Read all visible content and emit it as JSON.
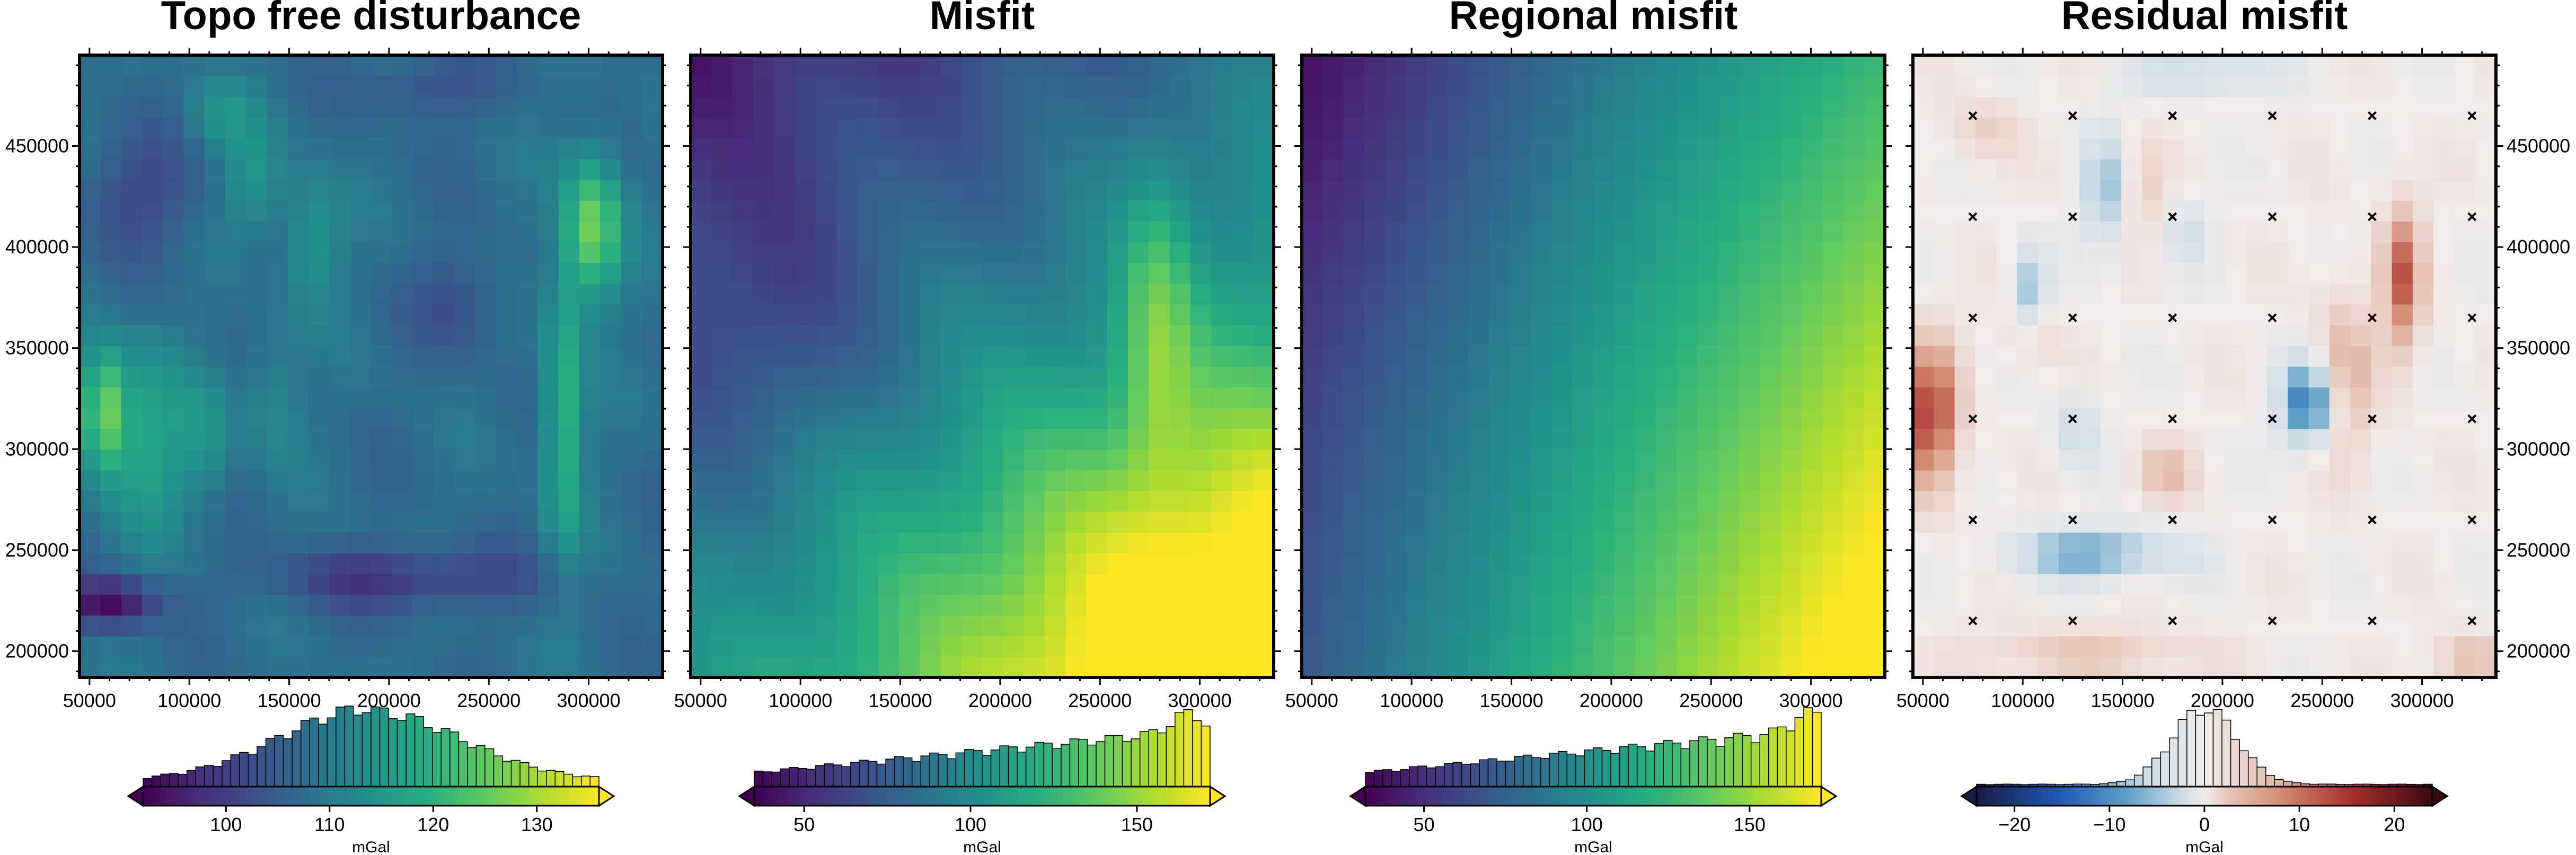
{
  "chart_data": [
    {
      "type": "heatmap",
      "title": "Topo free disturbance",
      "x_ticks": [
        50000,
        100000,
        150000,
        200000,
        250000,
        300000
      ],
      "y_ticks": [
        200000,
        250000,
        300000,
        350000,
        400000,
        450000
      ],
      "x_tick_labels": [
        "50000",
        "100000",
        "150000",
        "200000",
        "250000",
        "300000"
      ],
      "y_tick_labels": [
        "200000",
        "250000",
        "300000",
        "350000",
        "400000",
        "450000"
      ],
      "y_axis_labels": "left",
      "colormap": "viridis",
      "colorbar": {
        "label": "mGal",
        "range": [
          92,
          136
        ],
        "ticks": [
          100,
          110,
          120,
          130
        ],
        "tick_labels": [
          "100",
          "110",
          "120",
          "130"
        ],
        "histogram_peak": 114,
        "histogram_shape": "skewed"
      }
    },
    {
      "type": "heatmap",
      "title": "Misfit",
      "x_ticks": [
        50000,
        100000,
        150000,
        200000,
        250000,
        300000
      ],
      "y_ticks": [
        200000,
        250000,
        300000,
        350000,
        400000,
        450000
      ],
      "x_tick_labels": [
        "50000",
        "100000",
        "150000",
        "200000",
        "250000",
        "300000"
      ],
      "y_tick_labels": [],
      "y_axis_labels": "none",
      "colormap": "viridis",
      "colorbar": {
        "label": "mGal",
        "range": [
          35,
          172
        ],
        "ticks": [
          50,
          100,
          150
        ],
        "tick_labels": [
          "50",
          "100",
          "150"
        ],
        "histogram_peak": 165,
        "histogram_shape": "rising"
      }
    },
    {
      "type": "heatmap",
      "title": "Regional misfit",
      "x_ticks": [
        50000,
        100000,
        150000,
        200000,
        250000,
        300000
      ],
      "y_ticks": [
        200000,
        250000,
        300000,
        350000,
        400000,
        450000
      ],
      "x_tick_labels": [
        "50000",
        "100000",
        "150000",
        "200000",
        "250000",
        "300000"
      ],
      "y_tick_labels": [],
      "y_axis_labels": "none",
      "colormap": "viridis",
      "colorbar": {
        "label": "mGal",
        "range": [
          32,
          172
        ],
        "ticks": [
          50,
          100,
          150
        ],
        "tick_labels": [
          "50",
          "100",
          "150"
        ],
        "histogram_peak": 168,
        "histogram_shape": "rising"
      }
    },
    {
      "type": "heatmap",
      "title": "Residual misfit",
      "x_ticks": [
        50000,
        100000,
        150000,
        200000,
        250000,
        300000
      ],
      "y_ticks": [
        200000,
        250000,
        300000,
        350000,
        400000,
        450000
      ],
      "x_tick_labels": [
        "50000",
        "100000",
        "150000",
        "200000",
        "250000",
        "300000"
      ],
      "y_tick_labels": [
        "200000",
        "250000",
        "300000",
        "350000",
        "400000",
        "450000"
      ],
      "y_axis_labels": "right",
      "colormap": "balance",
      "markers": {
        "symbol": "x",
        "x": [
          75000,
          125000,
          175000,
          225000,
          275000,
          325000
        ],
        "y": [
          215000,
          265000,
          315000,
          365000,
          415000,
          465000
        ]
      },
      "colorbar": {
        "label": "mGal",
        "range": [
          -24,
          24
        ],
        "ticks": [
          -20,
          -10,
          0,
          10,
          20
        ],
        "tick_labels": [
          "−20",
          "−10",
          "0",
          "10",
          "20"
        ],
        "histogram_peak": 0,
        "histogram_shape": "peaked"
      }
    }
  ]
}
